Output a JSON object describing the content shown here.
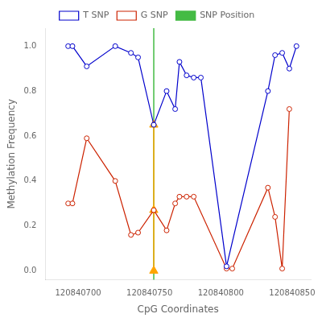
{
  "chart_data": {
    "type": "line",
    "xlabel": "CpG Coordinates",
    "ylabel": "Methylation Frequency",
    "xlim": [
      120840677,
      120840863
    ],
    "ylim": [
      -0.04,
      1.08
    ],
    "xticks": [
      120840700,
      120840750,
      120840800,
      120840850
    ],
    "yticks": [
      {
        "value": 0.0,
        "label": "0.0"
      },
      0.2,
      0.4,
      0.6,
      0.8,
      {
        "value": 1.0,
        "label": "1.0"
      }
    ],
    "grid": false,
    "legend": "top",
    "series": [
      {
        "name": "T SNP",
        "color": "#0000CC",
        "marker": "circle",
        "line_style": "solid",
        "x": [
          120840693,
          120840696,
          120840706,
          120840726,
          120840737,
          120840742,
          120840753,
          120840762,
          120840768,
          120840771,
          120840776,
          120840781,
          120840786,
          120840804,
          120840833,
          120840838,
          120840843,
          120840848,
          120840853
        ],
        "values": [
          1.0,
          1.0,
          0.91,
          1.0,
          0.97,
          0.95,
          0.65,
          0.8,
          0.72,
          0.93,
          0.87,
          0.86,
          0.86,
          0.02,
          0.8,
          0.96,
          0.97,
          0.9,
          1.0
        ]
      },
      {
        "name": "G SNP",
        "color": "#CC2200",
        "marker": "circle",
        "line_style": "solid",
        "x": [
          120840693,
          120840696,
          120840706,
          120840726,
          120840737,
          120840742,
          120840753,
          120840762,
          120840768,
          120840771,
          120840776,
          120840781,
          120840804,
          120840808,
          120840833,
          120840838,
          120840843,
          120840848
        ],
        "values": [
          0.3,
          0.3,
          0.59,
          0.4,
          0.16,
          0.17,
          0.27,
          0.18,
          0.3,
          0.33,
          0.33,
          0.33,
          0.01,
          0.01,
          0.37,
          0.24,
          0.01,
          0.72
        ]
      },
      {
        "color": "#FFA500",
        "marker": "triangle",
        "line_style": "solid",
        "x": [
          120840753,
          120840753,
          120840753
        ],
        "values": [
          0.65,
          0.27,
          0.0
        ]
      },
      {
        "name": "SNP Position",
        "type": "vline",
        "color": "#44BB44",
        "line_style": "solid",
        "x": 120840753
      }
    ]
  }
}
